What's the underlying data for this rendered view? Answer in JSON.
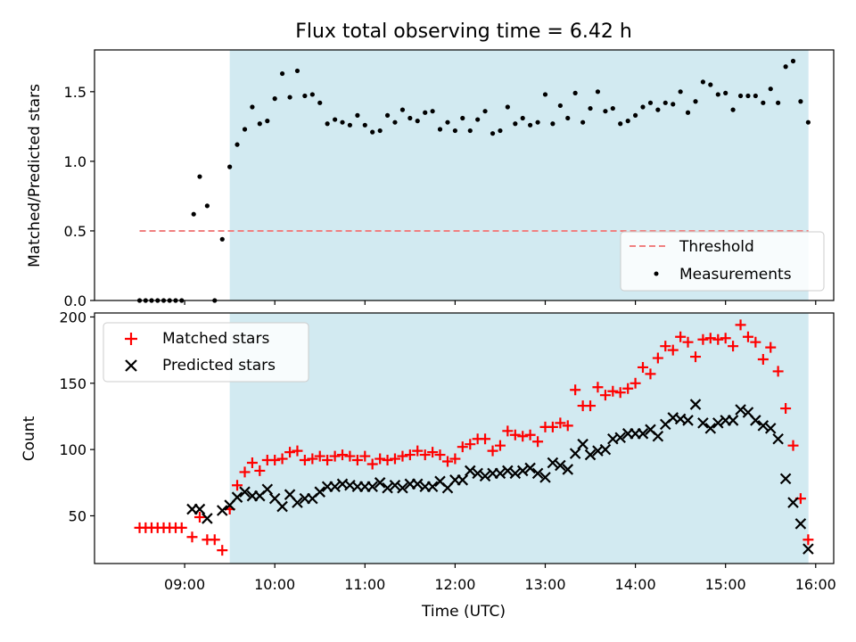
{
  "chart_data": [
    {
      "type": "scatter",
      "title": "Flux total observing time = 6.42 h",
      "xlabel": "",
      "ylabel": "Matched/Predicted stars",
      "xlim_hours": [
        8.0,
        16.2
      ],
      "ylim": [
        0,
        1.8
      ],
      "yticks": [
        0.0,
        0.5,
        1.0,
        1.5
      ],
      "ytick_labels": [
        "0.0",
        "0.5",
        "1.0",
        "1.5"
      ],
      "shaded_span_hours": [
        9.5,
        15.92
      ],
      "shade_color": "#add8e6",
      "threshold": {
        "label": "Threshold",
        "value": 0.5,
        "x_range_hours": [
          8.5,
          15.92
        ],
        "color": "#f08080"
      },
      "legend": {
        "placement": "lower-right",
        "entries": [
          "Threshold",
          "Measurements"
        ]
      },
      "series": [
        {
          "name": "Measurements",
          "color": "#000000",
          "x_hours": [
            8.5,
            8.567,
            8.633,
            8.7,
            8.767,
            8.833,
            8.9,
            8.967,
            9.1,
            9.167,
            9.25,
            9.333,
            9.417,
            9.5,
            9.583,
            9.667,
            9.75,
            9.833,
            9.917,
            10.0,
            10.083,
            10.167,
            10.25,
            10.333,
            10.417,
            10.5,
            10.583,
            10.667,
            10.75,
            10.833,
            10.917,
            11.0,
            11.083,
            11.167,
            11.25,
            11.333,
            11.417,
            11.5,
            11.583,
            11.667,
            11.75,
            11.833,
            11.917,
            12.0,
            12.083,
            12.167,
            12.25,
            12.333,
            12.417,
            12.5,
            12.583,
            12.667,
            12.75,
            12.833,
            12.917,
            13.0,
            13.083,
            13.167,
            13.25,
            13.333,
            13.417,
            13.5,
            13.583,
            13.667,
            13.75,
            13.833,
            13.917,
            14.0,
            14.083,
            14.167,
            14.25,
            14.333,
            14.417,
            14.5,
            14.583,
            14.667,
            14.75,
            14.833,
            14.917,
            15.0,
            15.083,
            15.167,
            15.25,
            15.333,
            15.417,
            15.5,
            15.583,
            15.667,
            15.75,
            15.833,
            15.917
          ],
          "y": [
            0,
            0,
            0,
            0,
            0,
            0,
            0,
            0,
            0.62,
            0.89,
            0.68,
            0,
            0.44,
            0.96,
            1.12,
            1.23,
            1.39,
            1.27,
            1.29,
            1.45,
            1.63,
            1.46,
            1.65,
            1.47,
            1.48,
            1.42,
            1.27,
            1.3,
            1.28,
            1.26,
            1.33,
            1.26,
            1.21,
            1.22,
            1.33,
            1.28,
            1.37,
            1.31,
            1.29,
            1.35,
            1.36,
            1.23,
            1.28,
            1.22,
            1.31,
            1.22,
            1.3,
            1.36,
            1.2,
            1.22,
            1.39,
            1.27,
            1.31,
            1.26,
            1.28,
            1.48,
            1.27,
            1.4,
            1.31,
            1.49,
            1.28,
            1.38,
            1.5,
            1.36,
            1.38,
            1.27,
            1.29,
            1.33,
            1.39,
            1.42,
            1.37,
            1.42,
            1.41,
            1.5,
            1.35,
            1.43,
            1.57,
            1.55,
            1.48,
            1.49,
            1.37,
            1.47,
            1.47,
            1.47,
            1.42,
            1.52,
            1.42,
            1.68,
            1.72,
            1.43,
            1.28
          ]
        }
      ]
    },
    {
      "type": "scatter",
      "title": "",
      "xlabel": "Time (UTC)",
      "ylabel": "Count",
      "xlim_hours": [
        8.0,
        16.2
      ],
      "ylim": [
        14,
        203
      ],
      "yticks": [
        50,
        100,
        150,
        200
      ],
      "ytick_labels": [
        "50",
        "100",
        "150",
        "200"
      ],
      "xticks_hours": [
        9,
        10,
        11,
        12,
        13,
        14,
        15,
        16
      ],
      "xtick_labels": [
        "09:00",
        "10:00",
        "11:00",
        "12:00",
        "13:00",
        "14:00",
        "15:00",
        "16:00"
      ],
      "shaded_span_hours": [
        9.5,
        15.92
      ],
      "shade_color": "#add8e6",
      "legend": {
        "placement": "upper-left",
        "entries": [
          "Matched stars",
          "Predicted stars"
        ]
      },
      "series": [
        {
          "name": "Matched stars",
          "marker": "plus",
          "color": "#ff0000",
          "x_hours": [
            8.5,
            8.567,
            8.633,
            8.7,
            8.767,
            8.833,
            8.9,
            8.967,
            9.083,
            9.167,
            9.25,
            9.333,
            9.417,
            9.5,
            9.583,
            9.667,
            9.75,
            9.833,
            9.917,
            10.0,
            10.083,
            10.167,
            10.25,
            10.333,
            10.417,
            10.5,
            10.583,
            10.667,
            10.75,
            10.833,
            10.917,
            11.0,
            11.083,
            11.167,
            11.25,
            11.333,
            11.417,
            11.5,
            11.583,
            11.667,
            11.75,
            11.833,
            11.917,
            12.0,
            12.083,
            12.167,
            12.25,
            12.333,
            12.417,
            12.5,
            12.583,
            12.667,
            12.75,
            12.833,
            12.917,
            13.0,
            13.083,
            13.167,
            13.25,
            13.333,
            13.417,
            13.5,
            13.583,
            13.667,
            13.75,
            13.833,
            13.917,
            14.0,
            14.083,
            14.167,
            14.25,
            14.333,
            14.417,
            14.5,
            14.583,
            14.667,
            14.75,
            14.833,
            14.917,
            15.0,
            15.083,
            15.167,
            15.25,
            15.333,
            15.417,
            15.5,
            15.583,
            15.667,
            15.75,
            15.833,
            15.917
          ],
          "y": [
            41,
            41,
            41,
            41,
            41,
            41,
            41,
            41,
            34,
            49,
            32,
            32,
            24,
            55,
            73,
            83,
            90,
            84,
            92,
            92,
            93,
            98,
            99,
            92,
            93,
            95,
            92,
            95,
            96,
            95,
            92,
            95,
            89,
            93,
            92,
            93,
            95,
            96,
            99,
            96,
            98,
            96,
            91,
            93,
            102,
            104,
            108,
            108,
            99,
            103,
            114,
            111,
            110,
            111,
            106,
            117,
            117,
            120,
            118,
            145,
            133,
            133,
            147,
            141,
            144,
            143,
            146,
            150,
            162,
            157,
            169,
            178,
            175,
            185,
            181,
            170,
            183,
            184,
            183,
            184,
            178,
            194,
            185,
            181,
            168,
            177,
            159,
            131,
            103,
            63,
            32
          ]
        },
        {
          "name": "Predicted stars",
          "marker": "cross",
          "color": "#000000",
          "x_hours": [
            9.083,
            9.167,
            9.25,
            9.417,
            9.5,
            9.583,
            9.667,
            9.75,
            9.833,
            9.917,
            10.0,
            10.083,
            10.167,
            10.25,
            10.333,
            10.417,
            10.5,
            10.583,
            10.667,
            10.75,
            10.833,
            10.917,
            11.0,
            11.083,
            11.167,
            11.25,
            11.333,
            11.417,
            11.5,
            11.583,
            11.667,
            11.75,
            11.833,
            11.917,
            12.0,
            12.083,
            12.167,
            12.25,
            12.333,
            12.417,
            12.5,
            12.583,
            12.667,
            12.75,
            12.833,
            12.917,
            13.0,
            13.083,
            13.167,
            13.25,
            13.333,
            13.417,
            13.5,
            13.583,
            13.667,
            13.75,
            13.833,
            13.917,
            14.0,
            14.083,
            14.167,
            14.25,
            14.333,
            14.417,
            14.5,
            14.583,
            14.667,
            14.75,
            14.833,
            14.917,
            15.0,
            15.083,
            15.167,
            15.25,
            15.333,
            15.417,
            15.5,
            15.583,
            15.667,
            15.75,
            15.833,
            15.917
          ],
          "y": [
            55,
            55,
            48,
            54,
            58,
            64,
            68,
            65,
            65,
            70,
            63,
            57,
            66,
            60,
            63,
            63,
            68,
            72,
            72,
            74,
            73,
            72,
            72,
            72,
            75,
            71,
            73,
            71,
            74,
            74,
            72,
            72,
            76,
            71,
            77,
            77,
            84,
            82,
            80,
            82,
            82,
            84,
            82,
            84,
            86,
            82,
            79,
            90,
            88,
            85,
            97,
            104,
            96,
            99,
            100,
            108,
            109,
            112,
            112,
            112,
            115,
            110,
            119,
            124,
            123,
            122,
            134,
            120,
            116,
            120,
            122,
            122,
            130,
            128,
            122,
            118,
            116,
            108,
            78,
            60,
            44,
            25
          ]
        }
      ]
    }
  ]
}
